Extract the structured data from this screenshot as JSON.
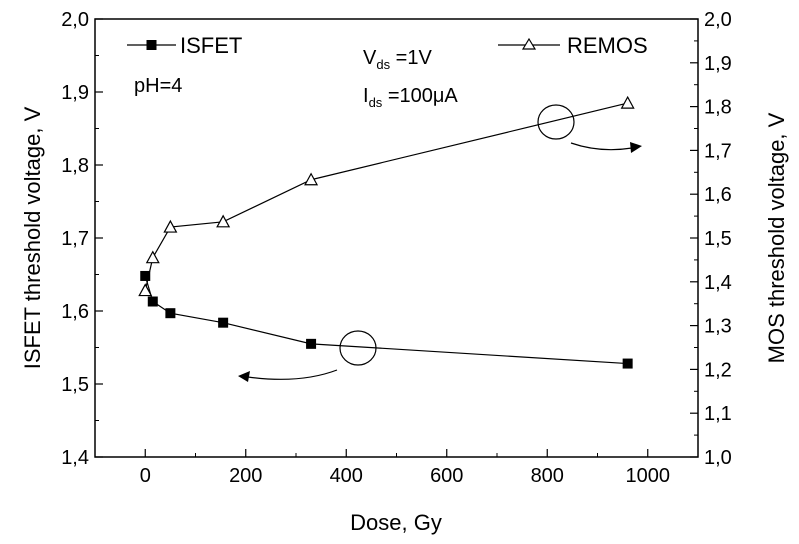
{
  "chart_data": {
    "type": "line",
    "xlabel": "Dose, Gy",
    "ylabel": "ISFET threshold voltage,  V",
    "y2label": "MOS threshold voltage,  V",
    "xlim": [
      -100,
      1100
    ],
    "ylim": [
      1.4,
      2.0
    ],
    "y2lim": [
      1.0,
      2.0
    ],
    "x_ticks": [
      0,
      200,
      400,
      600,
      800,
      1000
    ],
    "x_tick_labels": [
      "0",
      "200",
      "400",
      "600",
      "800",
      "1000"
    ],
    "y_ticks": [
      1.4,
      1.5,
      1.6,
      1.7,
      1.8,
      1.9,
      2.0
    ],
    "y_tick_labels": [
      "1,4",
      "1,5",
      "1,6",
      "1,7",
      "1,8",
      "1,9",
      "2,0"
    ],
    "y2_ticks": [
      1.0,
      1.1,
      1.2,
      1.3,
      1.4,
      1.5,
      1.6,
      1.7,
      1.8,
      1.9,
      2.0
    ],
    "y2_tick_labels": [
      "1,0",
      "1,1",
      "1,2",
      "1,3",
      "1,4",
      "1,5",
      "1,6",
      "1,7",
      "1,8",
      "1,9",
      "2,0"
    ],
    "grid": false,
    "series": [
      {
        "name": "ISFET",
        "axis": "left",
        "marker": "filled-square",
        "x": [
          0,
          15,
          50,
          155,
          330,
          960
        ],
        "y": [
          1.648,
          1.613,
          1.597,
          1.584,
          1.555,
          1.528
        ]
      },
      {
        "name": "REMOS",
        "axis": "right",
        "marker": "open-triangle",
        "x": [
          0,
          15,
          50,
          155,
          330,
          960
        ],
        "y": [
          1.38,
          1.455,
          1.525,
          1.537,
          1.633,
          1.808
        ]
      }
    ],
    "annotations": {
      "ph": "pH=4",
      "vds_main": "V",
      "vds_sub": "ds",
      "vds_value": " =1V",
      "ids_main": "I",
      "ids_sub": "ds",
      "ids_value": " =100μA"
    }
  }
}
